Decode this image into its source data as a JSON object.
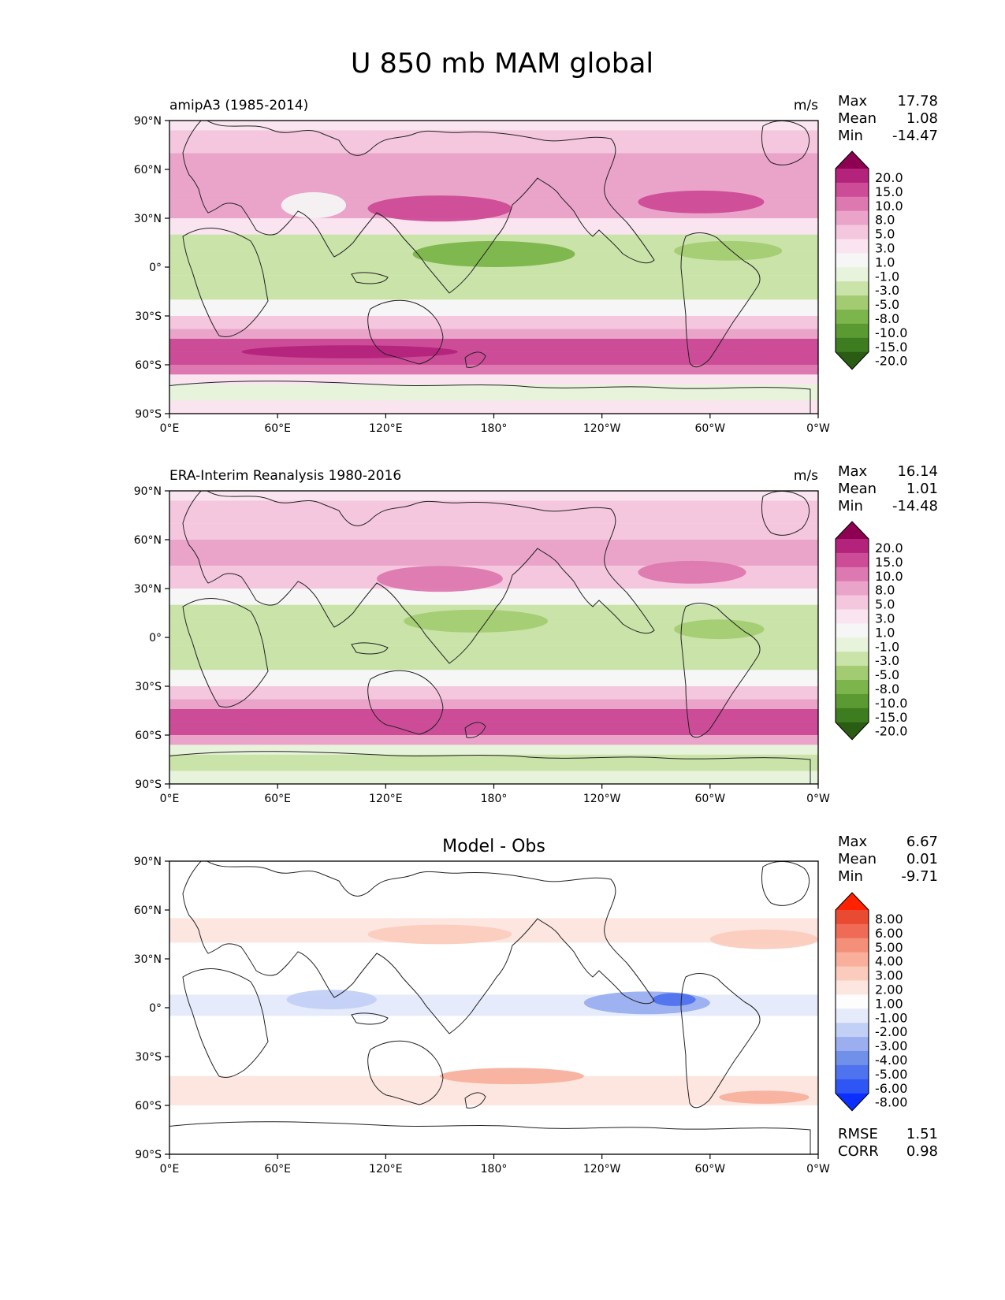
{
  "figure_title": "U 850 mb MAM global",
  "colors": {
    "model_obs_scale": [
      "#2a5c14",
      "#3d7d1f",
      "#5b9a32",
      "#7cb54b",
      "#a3cc72",
      "#c9e3a8",
      "#e8f3dc",
      "#f6f6f6",
      "#f9e4ef",
      "#f4c7de",
      "#eaa4c9",
      "#dd79b0",
      "#cd4c97",
      "#b3237b",
      "#8e0152"
    ],
    "diff_scale": [
      "#0b2fff",
      "#2e56f5",
      "#4f73ee",
      "#7090ea",
      "#9aaef0",
      "#c3d0f6",
      "#e6ebfb",
      "#fdfdfd",
      "#fde6e0",
      "#fbccbe",
      "#f8b09d",
      "#f4907a",
      "#ef6b55",
      "#e94a32",
      "#ff2200"
    ],
    "coastline": "#222222"
  },
  "chart_data": [
    {
      "type": "heatmap",
      "panel": "top",
      "left_title": "amipA3 (1985-2014)",
      "units": "m/s",
      "stats": [
        {
          "label": "Max",
          "value": "17.78"
        },
        {
          "label": "Mean",
          "value": "1.08"
        },
        {
          "label": "Min",
          "value": "-14.47"
        }
      ],
      "colorbar_labels": [
        "20.0",
        "15.0",
        "10.0",
        "8.0",
        "5.0",
        "3.0",
        "1.0",
        "-1.0",
        "-3.0",
        "-5.0",
        "-8.0",
        "-10.0",
        "-15.0",
        "-20.0"
      ],
      "ylabel_ticks": [
        "90°N",
        "60°N",
        "30°N",
        "0°",
        "30°S",
        "60°S",
        "90°S"
      ],
      "xlabel_ticks": [
        "0°E",
        "60°E",
        "120°E",
        "180°",
        "120°W",
        "60°W",
        "0°W"
      ],
      "xlim": [
        0,
        360
      ],
      "ylim": [
        -90,
        90
      ],
      "zonal_bands": [
        {
          "lat": [
            84,
            90
          ],
          "value": 1.5
        },
        {
          "lat": [
            70,
            84
          ],
          "value": 4
        },
        {
          "lat": [
            60,
            70
          ],
          "value": 5
        },
        {
          "lat": [
            44,
            60
          ],
          "value": 6
        },
        {
          "lat": [
            30,
            44
          ],
          "value": 5
        },
        {
          "lat": [
            20,
            30
          ],
          "value": 1
        },
        {
          "lat": [
            10,
            20
          ],
          "value": -4
        },
        {
          "lat": [
            -5,
            10
          ],
          "value": -5
        },
        {
          "lat": [
            -20,
            -5
          ],
          "value": -4
        },
        {
          "lat": [
            -30,
            -20
          ],
          "value": -1
        },
        {
          "lat": [
            -38,
            -30
          ],
          "value": 3
        },
        {
          "lat": [
            -44,
            -38
          ],
          "value": 7
        },
        {
          "lat": [
            -52,
            -44
          ],
          "value": 11
        },
        {
          "lat": [
            -60,
            -52
          ],
          "value": 13
        },
        {
          "lat": [
            -66,
            -60
          ],
          "value": 9
        },
        {
          "lat": [
            -72,
            -66
          ],
          "value": 2
        },
        {
          "lat": [
            -82,
            -72
          ],
          "value": -2
        },
        {
          "lat": [
            -90,
            -82
          ],
          "value": 1
        }
      ],
      "features": [
        {
          "lon": 150,
          "lat": 36,
          "rlon": 40,
          "rlat": 8,
          "value": 12
        },
        {
          "lon": 295,
          "lat": 40,
          "rlon": 35,
          "rlat": 7,
          "value": 12
        },
        {
          "lon": 70,
          "lat": 45,
          "rlon": 25,
          "rlat": 6,
          "value": 6
        },
        {
          "lon": 180,
          "lat": 8,
          "rlon": 45,
          "rlat": 8,
          "value": -9
        },
        {
          "lon": 310,
          "lat": 10,
          "rlon": 30,
          "rlat": 6,
          "value": -7
        },
        {
          "lon": 80,
          "lat": 38,
          "rlon": 18,
          "rlat": 8,
          "value": 0
        },
        {
          "lon": 100,
          "lat": -52,
          "rlon": 60,
          "rlat": 4,
          "value": 16
        },
        {
          "lon": 340,
          "lat": -52,
          "rlon": 20,
          "rlat": 4,
          "value": 14
        }
      ]
    },
    {
      "type": "heatmap",
      "panel": "middle",
      "left_title": "ERA-Interim Reanalysis 1980-2016",
      "units": "m/s",
      "stats": [
        {
          "label": "Max",
          "value": "16.14"
        },
        {
          "label": "Mean",
          "value": "1.01"
        },
        {
          "label": "Min",
          "value": "-14.48"
        }
      ],
      "colorbar_labels": [
        "20.0",
        "15.0",
        "10.0",
        "8.0",
        "5.0",
        "3.0",
        "1.0",
        "-1.0",
        "-3.0",
        "-5.0",
        "-8.0",
        "-10.0",
        "-15.0",
        "-20.0"
      ],
      "ylabel_ticks": [
        "90°N",
        "60°N",
        "30°N",
        "0°",
        "30°S",
        "60°S",
        "90°S"
      ],
      "xlabel_ticks": [
        "0°E",
        "60°E",
        "120°E",
        "180°",
        "120°W",
        "60°W",
        "0°W"
      ],
      "xlim": [
        0,
        360
      ],
      "ylim": [
        -90,
        90
      ],
      "zonal_bands": [
        {
          "lat": [
            84,
            90
          ],
          "value": 1.5
        },
        {
          "lat": [
            70,
            84
          ],
          "value": 3
        },
        {
          "lat": [
            60,
            70
          ],
          "value": 4
        },
        {
          "lat": [
            44,
            60
          ],
          "value": 5
        },
        {
          "lat": [
            30,
            44
          ],
          "value": 4
        },
        {
          "lat": [
            20,
            30
          ],
          "value": 0
        },
        {
          "lat": [
            10,
            20
          ],
          "value": -4
        },
        {
          "lat": [
            -5,
            10
          ],
          "value": -5
        },
        {
          "lat": [
            -20,
            -5
          ],
          "value": -4
        },
        {
          "lat": [
            -30,
            -20
          ],
          "value": -1
        },
        {
          "lat": [
            -38,
            -30
          ],
          "value": 3
        },
        {
          "lat": [
            -44,
            -38
          ],
          "value": 7
        },
        {
          "lat": [
            -52,
            -44
          ],
          "value": 11
        },
        {
          "lat": [
            -60,
            -52
          ],
          "value": 12
        },
        {
          "lat": [
            -66,
            -60
          ],
          "value": 5
        },
        {
          "lat": [
            -72,
            -66
          ],
          "value": -3
        },
        {
          "lat": [
            -82,
            -72
          ],
          "value": -4
        },
        {
          "lat": [
            -90,
            -82
          ],
          "value": -2
        }
      ],
      "features": [
        {
          "lon": 150,
          "lat": 36,
          "rlon": 35,
          "rlat": 8,
          "value": 9
        },
        {
          "lon": 290,
          "lat": 40,
          "rlon": 30,
          "rlat": 7,
          "value": 8
        },
        {
          "lon": 170,
          "lat": 10,
          "rlon": 40,
          "rlat": 7,
          "value": -7
        },
        {
          "lon": 305,
          "lat": 5,
          "rlon": 25,
          "rlat": 6,
          "value": -7
        },
        {
          "lon": 90,
          "lat": -50,
          "rlon": 50,
          "rlat": 4,
          "value": 14
        }
      ]
    },
    {
      "type": "heatmap",
      "panel": "bottom",
      "center_title": "Model - Obs",
      "stats": [
        {
          "label": "Max",
          "value": "6.67"
        },
        {
          "label": "Mean",
          "value": "0.01"
        },
        {
          "label": "Min",
          "value": "-9.71"
        }
      ],
      "colorbar_labels": [
        "8.00",
        "6.00",
        "5.00",
        "4.00",
        "3.00",
        "2.00",
        "1.00",
        "-1.00",
        "-2.00",
        "-3.00",
        "-4.00",
        "-5.00",
        "-6.00",
        "-8.00"
      ],
      "extra_stats": [
        {
          "label": "RMSE",
          "value": "1.51"
        },
        {
          "label": "CORR",
          "value": "0.98"
        }
      ],
      "ylabel_ticks": [
        "90°N",
        "60°N",
        "30°N",
        "0°",
        "30°S",
        "60°S",
        "90°S"
      ],
      "xlabel_ticks": [
        "0°E",
        "60°E",
        "120°E",
        "180°",
        "120°W",
        "60°W",
        "0°W"
      ],
      "xlim": [
        0,
        360
      ],
      "ylim": [
        -90,
        90
      ],
      "zonal_bands": [
        {
          "lat": [
            40,
            55
          ],
          "value": 1.5
        },
        {
          "lat": [
            -60,
            -42
          ],
          "value": 1.5
        },
        {
          "lat": [
            -5,
            8
          ],
          "value": -1.5
        }
      ],
      "features": [
        {
          "lon": 150,
          "lat": 45,
          "rlon": 40,
          "rlat": 6,
          "value": 2.5
        },
        {
          "lon": 330,
          "lat": 42,
          "rlon": 30,
          "rlat": 6,
          "value": 2.5
        },
        {
          "lon": 265,
          "lat": 3,
          "rlon": 35,
          "rlat": 7,
          "value": -3.5
        },
        {
          "lon": 280,
          "lat": 5,
          "rlon": 12,
          "rlat": 4,
          "value": -5.5
        },
        {
          "lon": 190,
          "lat": -42,
          "rlon": 40,
          "rlat": 5,
          "value": 3.5
        },
        {
          "lon": 330,
          "lat": -55,
          "rlon": 25,
          "rlat": 4,
          "value": 3.5
        },
        {
          "lon": 90,
          "lat": 5,
          "rlon": 25,
          "rlat": 6,
          "value": -2.5
        }
      ]
    }
  ]
}
